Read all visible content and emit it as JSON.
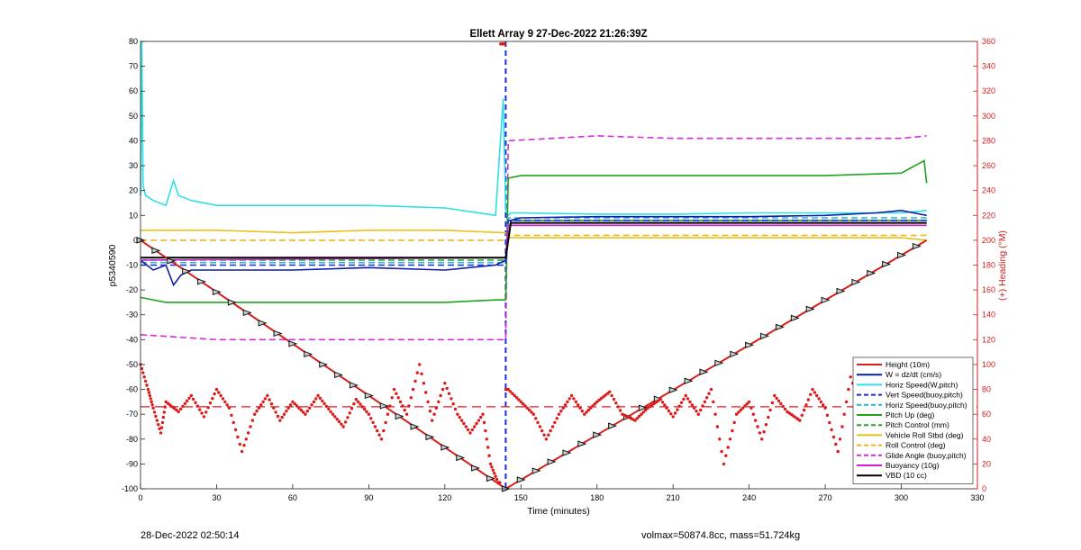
{
  "footer": {
    "left_text": "28-Dec-2022 02:50:14",
    "right_text": "volmax=50874.8cc, mass=51.724kg"
  },
  "chart_data": {
    "type": "line",
    "title": "Ellett Array 9 27-Dec-2022 21:26:39Z",
    "xlabel": "Time (minutes)",
    "ylabel": "p5340590",
    "ylabel_right": "(+) Heading (°M)",
    "xlim": [
      0,
      330
    ],
    "ylim": [
      -100,
      80
    ],
    "ylim_right": [
      0,
      360
    ],
    "x_ticks": [
      0,
      30,
      60,
      90,
      120,
      150,
      180,
      210,
      240,
      270,
      300,
      330
    ],
    "y_ticks": [
      -100,
      -90,
      -80,
      -70,
      -60,
      -50,
      -40,
      -30,
      -20,
      -10,
      0,
      10,
      20,
      30,
      40,
      50,
      60,
      70,
      80
    ],
    "y_ticks_right": [
      0,
      20,
      40,
      60,
      80,
      100,
      120,
      140,
      160,
      180,
      200,
      220,
      240,
      260,
      280,
      300,
      320,
      340,
      360
    ],
    "grid": false,
    "legend_position": "bottom-right",
    "colors": {
      "height": "#d62019",
      "w": "#0d1fa8",
      "horiz": "#2ee0e6",
      "vert_buoy": "#1a2bd8",
      "horiz_buoy": "#1fb8d8",
      "pitch": "#1fa31f",
      "pitch_control": "#2f9e2f",
      "roll": "#e8c01a",
      "roll_control": "#e8b820",
      "glide": "#d62bd6",
      "buoyancy": "#d11fd1",
      "vbd": "#000000",
      "heading": "#dd1a1a",
      "right_axis": "#cc2020"
    },
    "apogee_time": 144,
    "series": [
      {
        "name": "Height (10m)",
        "key": "height",
        "style": "solid",
        "x": [
          0,
          144,
          310
        ],
        "y": [
          0,
          -100,
          0
        ]
      },
      {
        "name": "W = dz/dt (cm/s)",
        "key": "w",
        "style": "solid",
        "x": [
          0,
          5,
          10,
          13,
          16,
          20,
          30,
          60,
          90,
          120,
          140,
          144,
          146,
          150,
          180,
          210,
          240,
          270,
          290,
          300,
          310
        ],
        "y": [
          -8,
          -12,
          -10,
          -18,
          -14,
          -12,
          -12,
          -12,
          -11,
          -12,
          -10,
          -8,
          8,
          9,
          9.5,
          9.5,
          9.5,
          10,
          11,
          12,
          10
        ]
      },
      {
        "name": "Horiz Speed(W,pitch)",
        "key": "horiz",
        "style": "solid",
        "x": [
          0,
          0.5,
          1,
          2,
          5,
          10,
          13,
          15,
          20,
          30,
          60,
          90,
          120,
          140,
          143,
          144,
          145,
          146,
          150,
          180,
          210,
          240,
          270,
          300,
          310
        ],
        "y": [
          18,
          80,
          22,
          18,
          16,
          14,
          24,
          18,
          16,
          14,
          14,
          14,
          13,
          10,
          57,
          12,
          10,
          11,
          11,
          10.5,
          10.5,
          11,
          11,
          11,
          12
        ]
      },
      {
        "name": "Vert Speed(buoy,pitch)",
        "key": "vert_buoy",
        "style": "dashed",
        "x": [
          0,
          144,
          145,
          310
        ],
        "y": [
          -10,
          -10,
          8,
          8
        ]
      },
      {
        "name": "Horiz Speed(buoy,pitch)",
        "key": "horiz_buoy",
        "style": "dashed",
        "x": [
          0,
          144,
          145,
          310
        ],
        "y": [
          -9,
          -9,
          9,
          9
        ]
      },
      {
        "name": "Pitch Up (deg)",
        "key": "pitch",
        "style": "solid",
        "x": [
          0,
          10,
          30,
          60,
          90,
          120,
          140,
          144,
          145,
          150,
          180,
          210,
          240,
          270,
          300,
          309,
          310
        ],
        "y": [
          -23,
          -25,
          -25,
          -25,
          -25,
          -25,
          -24,
          -24,
          25,
          26,
          26,
          26,
          26,
          26,
          27,
          32,
          23
        ]
      },
      {
        "name": "Pitch Control (mm)",
        "key": "pitch_control",
        "style": "dashed",
        "x": [
          0,
          144,
          145,
          310
        ],
        "y": [
          -8,
          -8,
          8,
          8
        ]
      },
      {
        "name": "Vehicle Roll Stbd (deg)",
        "key": "roll",
        "style": "solid",
        "x": [
          0,
          30,
          60,
          90,
          120,
          144,
          145,
          180,
          210,
          240,
          270,
          300,
          310
        ],
        "y": [
          4,
          4,
          3,
          4,
          4,
          3,
          1,
          1,
          1,
          1,
          1,
          1,
          0
        ]
      },
      {
        "name": "Roll Control (deg)",
        "key": "roll_control",
        "style": "dashed",
        "x": [
          0,
          144,
          145,
          310
        ],
        "y": [
          0,
          0,
          2,
          2
        ]
      },
      {
        "name": "Glide Angle (buoy,pitch)",
        "key": "glide",
        "style": "dashed",
        "x": [
          0,
          30,
          60,
          90,
          120,
          140,
          144,
          145,
          180,
          210,
          240,
          270,
          300,
          310
        ],
        "y": [
          -38,
          -40,
          -40,
          -40,
          -40,
          -40,
          -40,
          40,
          42,
          41,
          41,
          41,
          41,
          42
        ]
      },
      {
        "name": "Buoyancy (10g)",
        "key": "buoyancy",
        "style": "solid",
        "x": [
          0,
          144,
          145,
          310
        ],
        "y": [
          -8,
          -7,
          6,
          6
        ]
      },
      {
        "name": "VBD (10 cc)",
        "key": "vbd",
        "style": "solid",
        "x": [
          0,
          144,
          146,
          310
        ],
        "y": [
          -7,
          -7,
          7,
          7
        ]
      }
    ],
    "heading": {
      "mean": 66,
      "x": [
        0,
        3,
        5,
        8,
        10,
        15,
        20,
        25,
        30,
        35,
        40,
        45,
        50,
        55,
        60,
        65,
        70,
        75,
        80,
        85,
        90,
        95,
        100,
        105,
        110,
        115,
        120,
        125,
        130,
        135,
        138,
        141,
        143,
        145,
        150,
        155,
        160,
        165,
        170,
        175,
        180,
        185,
        190,
        195,
        200,
        205,
        210,
        215,
        220,
        225,
        230,
        235,
        240,
        245,
        250,
        255,
        260,
        265,
        270,
        275,
        280,
        285,
        290,
        295,
        300,
        305,
        308
      ],
      "y": [
        100,
        80,
        65,
        45,
        70,
        62,
        75,
        58,
        80,
        65,
        30,
        60,
        75,
        55,
        70,
        60,
        75,
        62,
        50,
        72,
        60,
        40,
        80,
        60,
        100,
        55,
        85,
        60,
        45,
        60,
        20,
        5,
        358,
        80,
        70,
        60,
        40,
        60,
        75,
        60,
        70,
        78,
        60,
        55,
        65,
        72,
        58,
        75,
        60,
        80,
        20,
        60,
        70,
        40,
        75,
        62,
        55,
        80,
        65,
        30,
        90,
        60,
        70,
        55,
        65,
        75,
        70
      ]
    }
  }
}
